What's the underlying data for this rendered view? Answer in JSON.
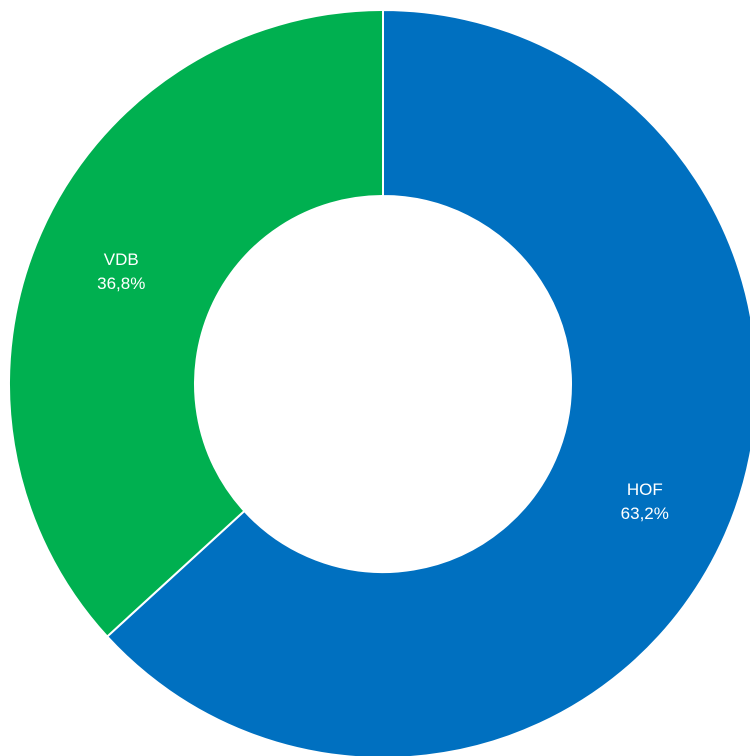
{
  "chart_data": {
    "type": "pie",
    "variant": "donut",
    "slices": [
      {
        "label": "HOF",
        "value": 63.2,
        "value_label": "63,2%",
        "color": "#0070C0"
      },
      {
        "label": "VDB",
        "value": 36.8,
        "value_label": "36,8%",
        "color": "#00B050"
      }
    ],
    "start_angle_deg": 0,
    "direction": "clockwise",
    "legend": "none",
    "data_labels": "inside"
  }
}
